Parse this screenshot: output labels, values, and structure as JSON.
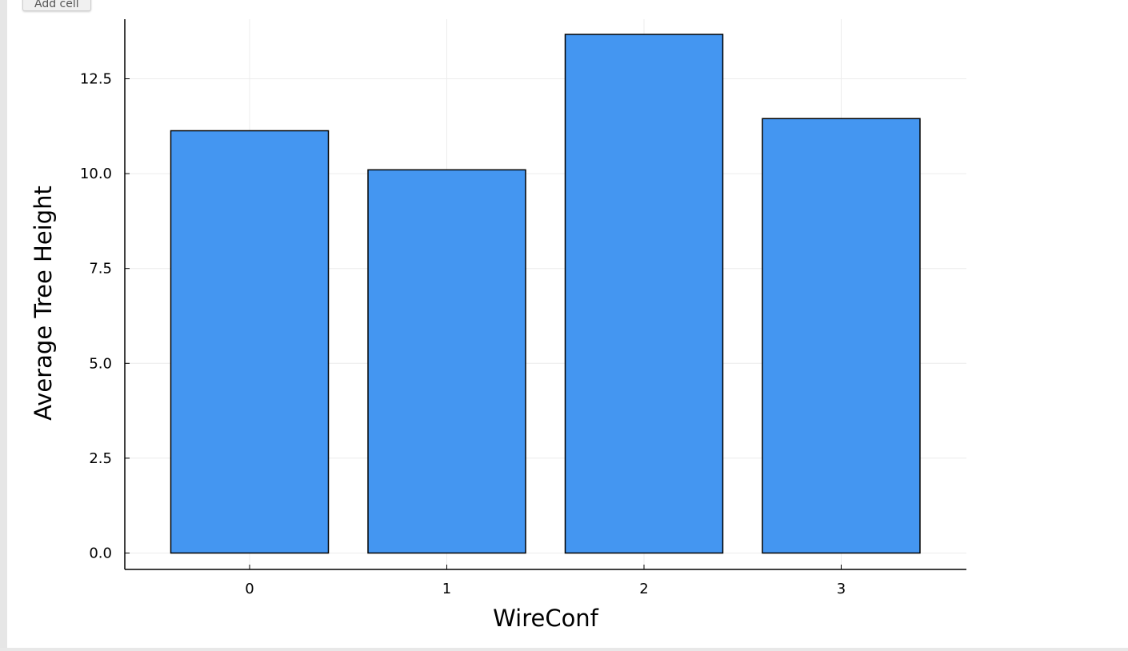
{
  "toolbar": {
    "add_cell_label": "Add cell"
  },
  "chart_data": {
    "type": "bar",
    "categories": [
      "0",
      "1",
      "2",
      "3"
    ],
    "values": [
      11.13,
      10.1,
      13.67,
      11.45
    ],
    "title": "",
    "xlabel": "WireConf",
    "ylabel": "Average Tree Height",
    "ylim": [
      0,
      14
    ],
    "yticks": [
      "0.0",
      "2.5",
      "5.0",
      "7.5",
      "10.0",
      "12.5"
    ],
    "grid": true,
    "legend": "none",
    "colors": {
      "bar_fill": "#4496f1",
      "bar_stroke": "#000000",
      "grid": "#ececec",
      "axis": "#000000"
    }
  }
}
